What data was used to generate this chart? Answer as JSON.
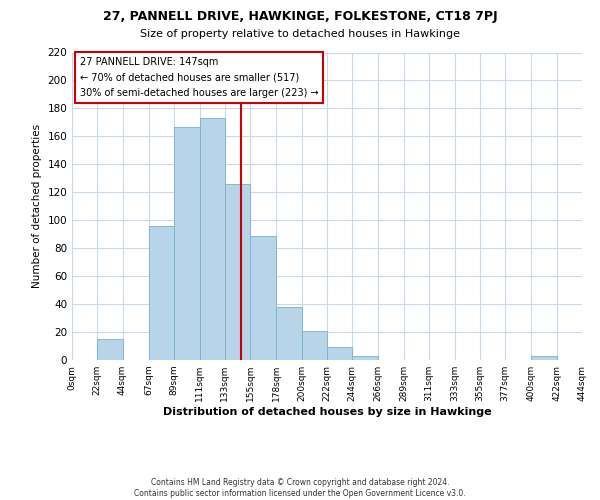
{
  "title_line1": "27, PANNELL DRIVE, HAWKINGE, FOLKESTONE, CT18 7PJ",
  "title_line2": "Size of property relative to detached houses in Hawkinge",
  "xlabel": "Distribution of detached houses by size in Hawkinge",
  "ylabel": "Number of detached properties",
  "bar_left_edges": [
    0,
    22,
    44,
    67,
    89,
    111,
    133,
    155,
    178,
    200,
    222,
    244,
    266,
    289,
    311,
    333,
    355,
    377,
    400,
    422
  ],
  "bar_widths": [
    22,
    22,
    23,
    22,
    22,
    22,
    22,
    23,
    22,
    22,
    22,
    22,
    23,
    22,
    22,
    22,
    22,
    23,
    22,
    22
  ],
  "bar_heights": [
    0,
    15,
    0,
    96,
    167,
    173,
    126,
    89,
    38,
    21,
    9,
    3,
    0,
    0,
    0,
    0,
    0,
    0,
    3,
    0
  ],
  "bar_color": "#b8d4e8",
  "bar_edgecolor": "#7ab0cc",
  "vline_x": 147,
  "vline_color": "#cc0000",
  "annotation_text_line1": "27 PANNELL DRIVE: 147sqm",
  "annotation_text_line2": "← 70% of detached houses are smaller (517)",
  "annotation_text_line3": "30% of semi-detached houses are larger (223) →",
  "box_edgecolor": "#cc0000",
  "box_facecolor": "#ffffff",
  "tick_labels": [
    "0sqm",
    "22sqm",
    "44sqm",
    "67sqm",
    "89sqm",
    "111sqm",
    "133sqm",
    "155sqm",
    "178sqm",
    "200sqm",
    "222sqm",
    "244sqm",
    "266sqm",
    "289sqm",
    "311sqm",
    "333sqm",
    "355sqm",
    "377sqm",
    "400sqm",
    "422sqm",
    "444sqm"
  ],
  "tick_positions": [
    0,
    22,
    44,
    67,
    89,
    111,
    133,
    155,
    178,
    200,
    222,
    244,
    266,
    289,
    311,
    333,
    355,
    377,
    400,
    422,
    444
  ],
  "ylim": [
    0,
    220
  ],
  "xlim": [
    0,
    444
  ],
  "yticks": [
    0,
    20,
    40,
    60,
    80,
    100,
    120,
    140,
    160,
    180,
    200,
    220
  ],
  "footer_line1": "Contains HM Land Registry data © Crown copyright and database right 2024.",
  "footer_line2": "Contains public sector information licensed under the Open Government Licence v3.0.",
  "background_color": "#ffffff",
  "grid_color": "#c8daea"
}
